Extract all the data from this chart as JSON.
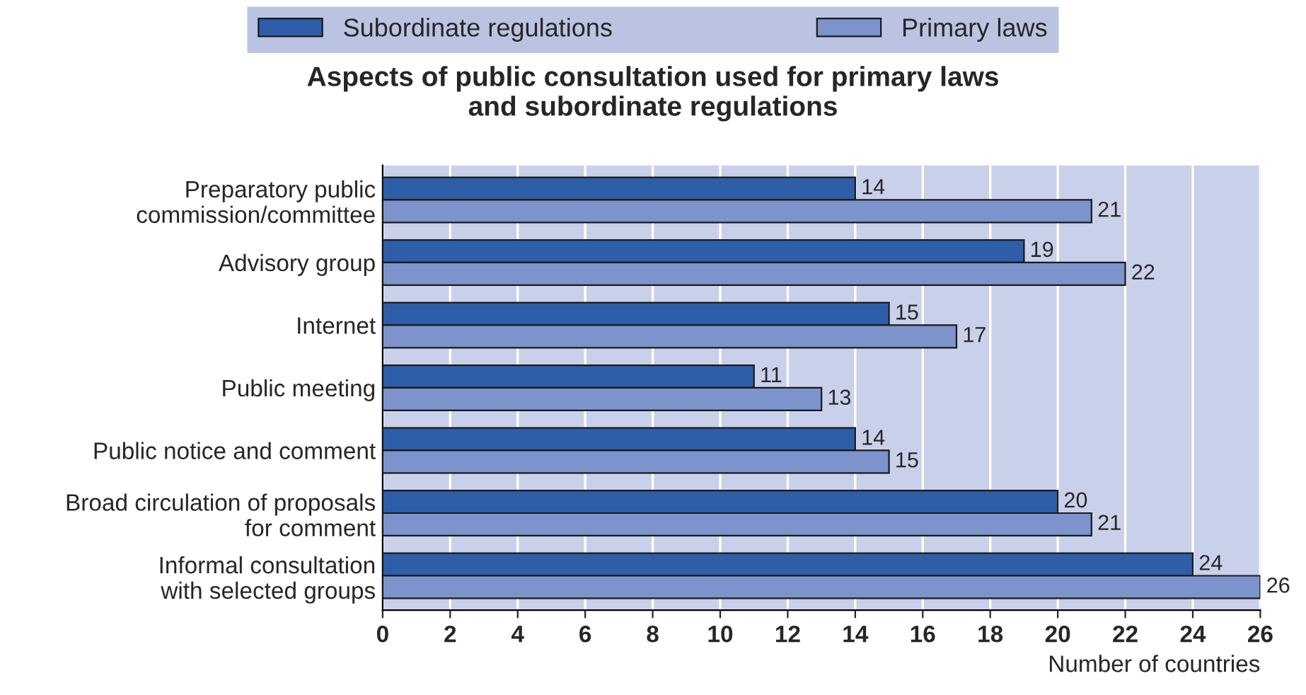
{
  "chart_data": {
    "type": "bar",
    "orientation": "horizontal",
    "title": "Aspects of public consultation used for primary laws\nand subordinate regulations",
    "xlabel": "Number of countries",
    "categories": [
      "Preparatory public\ncommission/committee",
      "Advisory group",
      "Internet",
      "Public meeting",
      "Public notice and comment",
      "Broad circulation of proposals\nfor comment",
      "Informal consultation\nwith selected groups"
    ],
    "series": [
      {
        "name": "Subordinate regulations",
        "color": "#2f5ea8",
        "values": [
          14,
          19,
          15,
          11,
          14,
          20,
          24
        ]
      },
      {
        "name": "Primary laws",
        "color": "#7d93cb",
        "values": [
          21,
          22,
          17,
          13,
          15,
          21,
          26
        ]
      }
    ],
    "xlim": [
      0,
      26
    ],
    "xticks": [
      0,
      2,
      4,
      6,
      8,
      10,
      12,
      14,
      16,
      18,
      20,
      22,
      24,
      26
    ],
    "grid": "x",
    "legend": "top",
    "data_labels": true
  }
}
